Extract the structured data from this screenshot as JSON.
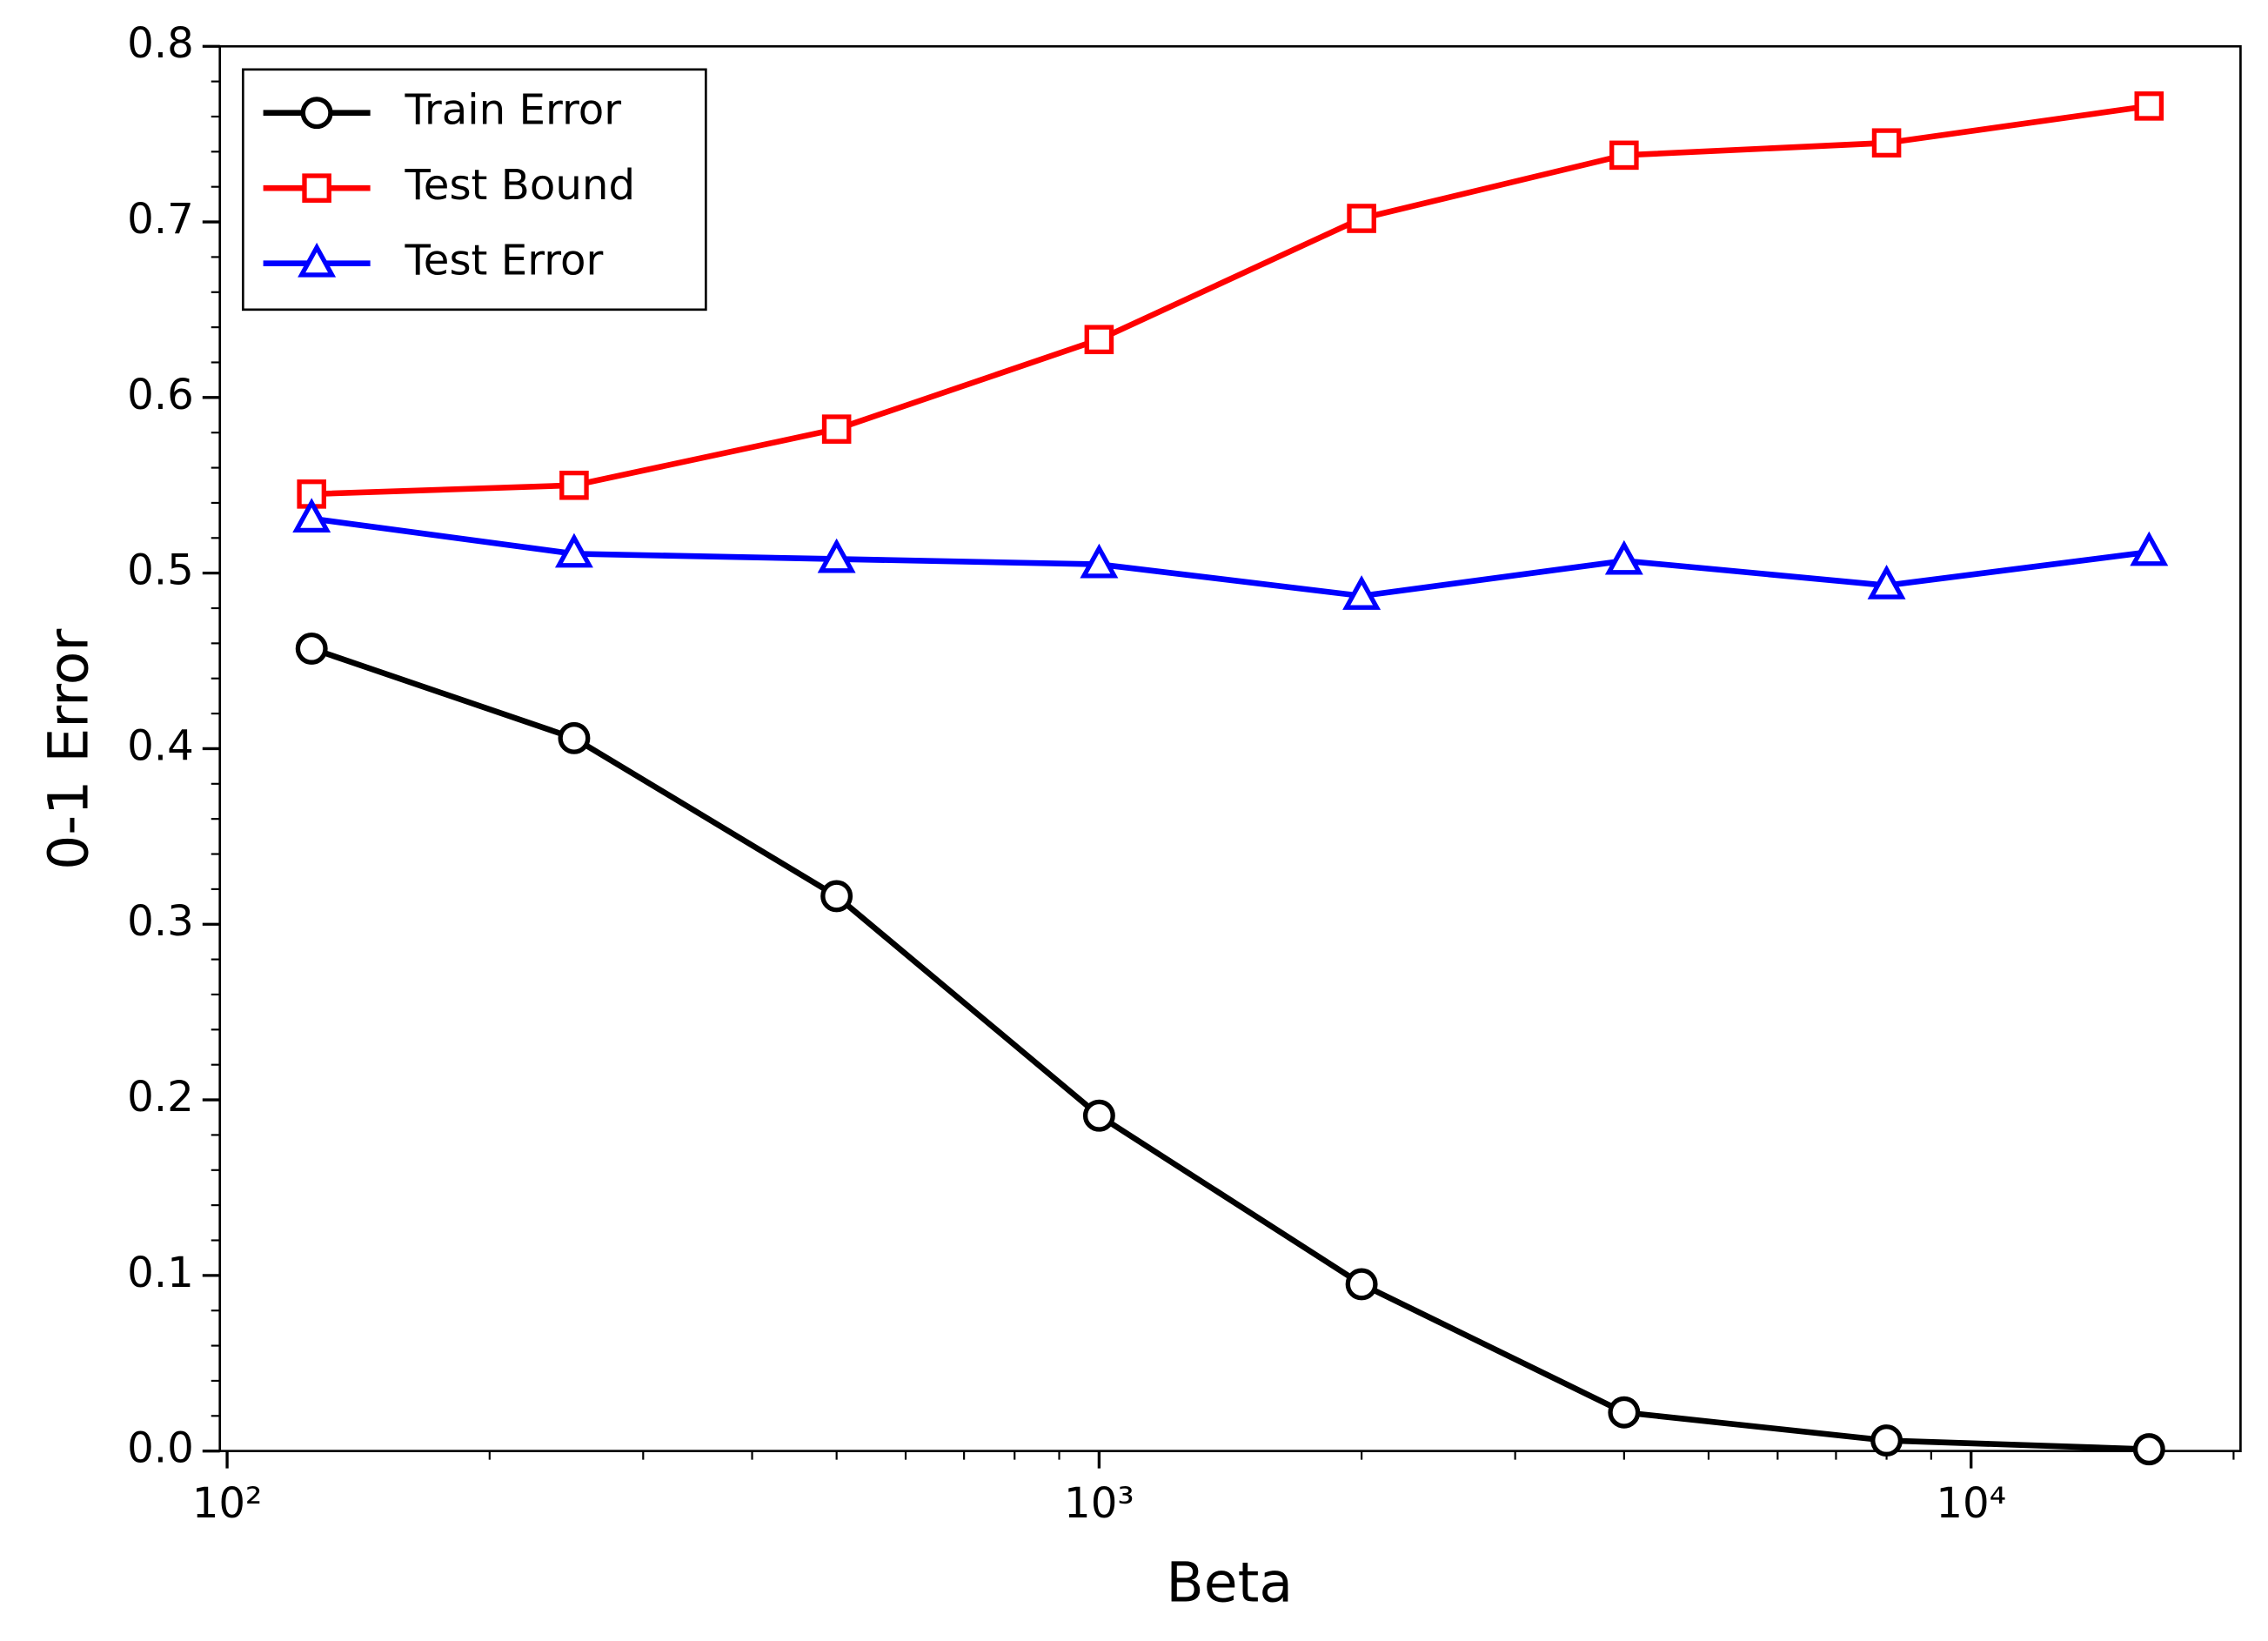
{
  "chart_data": {
    "type": "line",
    "xlabel": "Beta",
    "ylabel": "0-1 Error",
    "x": [
      125,
      250,
      500,
      1000,
      2000,
      4000,
      8000,
      16000
    ],
    "series": [
      {
        "name": "Train Error",
        "color": "#000000",
        "marker": "circle",
        "values": [
          0.457,
          0.406,
          0.316,
          0.191,
          0.095,
          0.022,
          0.006,
          0.001
        ]
      },
      {
        "name": "Test Bound",
        "color": "#ff0000",
        "marker": "square",
        "values": [
          0.545,
          0.55,
          0.582,
          0.633,
          0.702,
          0.738,
          0.745,
          0.766
        ]
      },
      {
        "name": "Test Error",
        "color": "#0000ff",
        "marker": "triangle",
        "values": [
          0.531,
          0.511,
          0.508,
          0.505,
          0.487,
          0.507,
          0.493,
          0.512
        ]
      }
    ],
    "xscale": "log",
    "xlim": [
      98.1,
      20370
    ],
    "xticks": [
      {
        "value": 100,
        "label": "10²"
      },
      {
        "value": 1000,
        "label": "10³"
      },
      {
        "value": 10000,
        "label": "10⁴"
      }
    ],
    "xminorticks": [
      200,
      300,
      400,
      500,
      600,
      700,
      800,
      900,
      2000,
      3000,
      4000,
      5000,
      6000,
      7000,
      8000,
      9000,
      20000
    ],
    "ylim": [
      0,
      0.8
    ],
    "yticks": [
      {
        "value": 0,
        "label": "0.0"
      },
      0.1,
      0.2,
      0.3,
      0.4,
      0.5,
      0.6,
      0.7,
      0.8
    ],
    "yminorticks": [
      0.02,
      0.04,
      0.06,
      0.08,
      0.12,
      0.14,
      0.16,
      0.18,
      0.22,
      0.24,
      0.26,
      0.28,
      0.32,
      0.34,
      0.36,
      0.38,
      0.42,
      0.44,
      0.46,
      0.48,
      0.52,
      0.54,
      0.56,
      0.58,
      0.62,
      0.64,
      0.66,
      0.68,
      0.72,
      0.74,
      0.76,
      0.78
    ],
    "legend": "upper left",
    "grid": false
  }
}
